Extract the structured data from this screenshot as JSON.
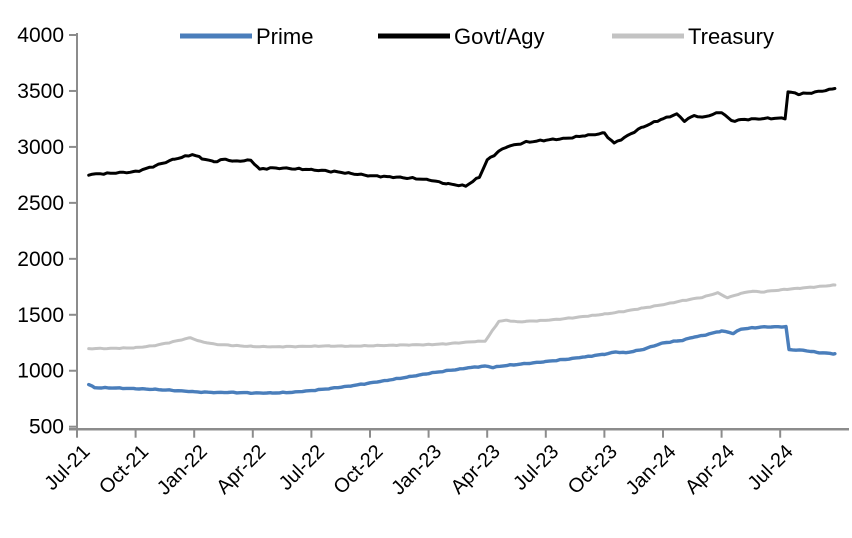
{
  "chart_data": {
    "type": "line",
    "title": "",
    "xlabel": "",
    "ylabel": "",
    "x_axis": {
      "tick_labels": [
        "Jul-21",
        "Oct-21",
        "Jan-22",
        "Apr-22",
        "Jul-22",
        "Oct-22",
        "Jan-23",
        "Apr-23",
        "Jul-23",
        "Oct-23",
        "Jan-24",
        "Apr-24",
        "Jul-24"
      ],
      "tick_month_index": [
        0,
        3,
        6,
        9,
        12,
        15,
        18,
        21,
        24,
        27,
        30,
        33,
        36
      ],
      "label_rotation_deg": -45
    },
    "y_axis": {
      "min": 500,
      "max": 4000,
      "step": 500,
      "tick_labels": [
        "500",
        "1000",
        "1500",
        "2000",
        "2500",
        "3000",
        "3500",
        "4000"
      ]
    },
    "grid": "off",
    "legend": {
      "position": "top"
    },
    "axis_color": "#8c8c8c",
    "series": [
      {
        "name": "Prime",
        "color": "#4a7ebb",
        "points": [
          [
            0.6,
            878
          ],
          [
            0.9,
            848
          ],
          [
            2,
            846
          ],
          [
            3,
            840
          ],
          [
            4,
            833
          ],
          [
            5,
            824
          ],
          [
            6,
            812
          ],
          [
            7,
            806
          ],
          [
            8,
            806
          ],
          [
            9,
            801
          ],
          [
            10,
            801
          ],
          [
            11,
            807
          ],
          [
            12,
            822
          ],
          [
            13,
            842
          ],
          [
            14,
            864
          ],
          [
            15,
            890
          ],
          [
            16,
            918
          ],
          [
            17,
            946
          ],
          [
            18,
            976
          ],
          [
            19,
            1002
          ],
          [
            19.6,
            1014
          ],
          [
            20,
            1026
          ],
          [
            20.9,
            1042
          ],
          [
            21.3,
            1030
          ],
          [
            22,
            1048
          ],
          [
            23,
            1064
          ],
          [
            24,
            1082
          ],
          [
            25,
            1102
          ],
          [
            26,
            1124
          ],
          [
            27,
            1148
          ],
          [
            27.6,
            1168
          ],
          [
            28.1,
            1160
          ],
          [
            29,
            1192
          ],
          [
            30,
            1248
          ],
          [
            31,
            1272
          ],
          [
            31.6,
            1302
          ],
          [
            32,
            1312
          ],
          [
            33,
            1356
          ],
          [
            33.6,
            1334
          ],
          [
            34,
            1372
          ],
          [
            35,
            1390
          ],
          [
            36.3,
            1394
          ],
          [
            36.45,
            1188
          ],
          [
            37.2,
            1182
          ],
          [
            38,
            1162
          ],
          [
            38.8,
            1152
          ]
        ]
      },
      {
        "name": "Govt/Agy",
        "color": "#000000",
        "points": [
          [
            0.6,
            2752
          ],
          [
            1,
            2758
          ],
          [
            2,
            2768
          ],
          [
            3,
            2778
          ],
          [
            4,
            2832
          ],
          [
            5,
            2892
          ],
          [
            5.9,
            2932
          ],
          [
            6.4,
            2898
          ],
          [
            7,
            2868
          ],
          [
            7.6,
            2892
          ],
          [
            8,
            2872
          ],
          [
            8.9,
            2880
          ],
          [
            9.35,
            2800
          ],
          [
            10,
            2812
          ],
          [
            11,
            2806
          ],
          [
            12,
            2796
          ],
          [
            13,
            2782
          ],
          [
            14,
            2762
          ],
          [
            15,
            2742
          ],
          [
            16,
            2732
          ],
          [
            17,
            2722
          ],
          [
            18,
            2706
          ],
          [
            19,
            2668
          ],
          [
            19.9,
            2652
          ],
          [
            20.6,
            2730
          ],
          [
            21,
            2882
          ],
          [
            21.6,
            2960
          ],
          [
            22,
            3002
          ],
          [
            23,
            3042
          ],
          [
            24,
            3062
          ],
          [
            25,
            3076
          ],
          [
            26,
            3102
          ],
          [
            27,
            3122
          ],
          [
            27.5,
            3032
          ],
          [
            28,
            3082
          ],
          [
            29,
            3182
          ],
          [
            30,
            3252
          ],
          [
            30.7,
            3292
          ],
          [
            31.1,
            3232
          ],
          [
            31.6,
            3282
          ],
          [
            32,
            3262
          ],
          [
            33,
            3312
          ],
          [
            33.5,
            3232
          ],
          [
            34,
            3242
          ],
          [
            35,
            3252
          ],
          [
            36.25,
            3258
          ],
          [
            36.4,
            3490
          ],
          [
            37,
            3472
          ],
          [
            37.6,
            3482
          ],
          [
            38.8,
            3522
          ]
        ]
      },
      {
        "name": "Treasury",
        "color": "#c3c3c3",
        "points": [
          [
            0.6,
            1196
          ],
          [
            1,
            1198
          ],
          [
            2,
            1200
          ],
          [
            3,
            1206
          ],
          [
            4,
            1226
          ],
          [
            5,
            1262
          ],
          [
            5.8,
            1296
          ],
          [
            6.3,
            1262
          ],
          [
            7,
            1238
          ],
          [
            8,
            1226
          ],
          [
            9,
            1216
          ],
          [
            10,
            1214
          ],
          [
            11,
            1216
          ],
          [
            12,
            1219
          ],
          [
            13,
            1221
          ],
          [
            14,
            1219
          ],
          [
            15,
            1223
          ],
          [
            16,
            1227
          ],
          [
            17,
            1231
          ],
          [
            18,
            1233
          ],
          [
            19,
            1241
          ],
          [
            20,
            1256
          ],
          [
            20.9,
            1266
          ],
          [
            21.6,
            1442
          ],
          [
            22,
            1450
          ],
          [
            22.6,
            1436
          ],
          [
            23,
            1441
          ],
          [
            24,
            1451
          ],
          [
            25,
            1466
          ],
          [
            26,
            1486
          ],
          [
            27,
            1506
          ],
          [
            28,
            1531
          ],
          [
            29,
            1561
          ],
          [
            30,
            1591
          ],
          [
            31,
            1626
          ],
          [
            32,
            1656
          ],
          [
            32.8,
            1696
          ],
          [
            33.3,
            1652
          ],
          [
            34,
            1692
          ],
          [
            34.6,
            1712
          ],
          [
            35,
            1702
          ],
          [
            36,
            1722
          ],
          [
            37,
            1737
          ],
          [
            38,
            1752
          ],
          [
            38.8,
            1766
          ]
        ]
      }
    ]
  }
}
